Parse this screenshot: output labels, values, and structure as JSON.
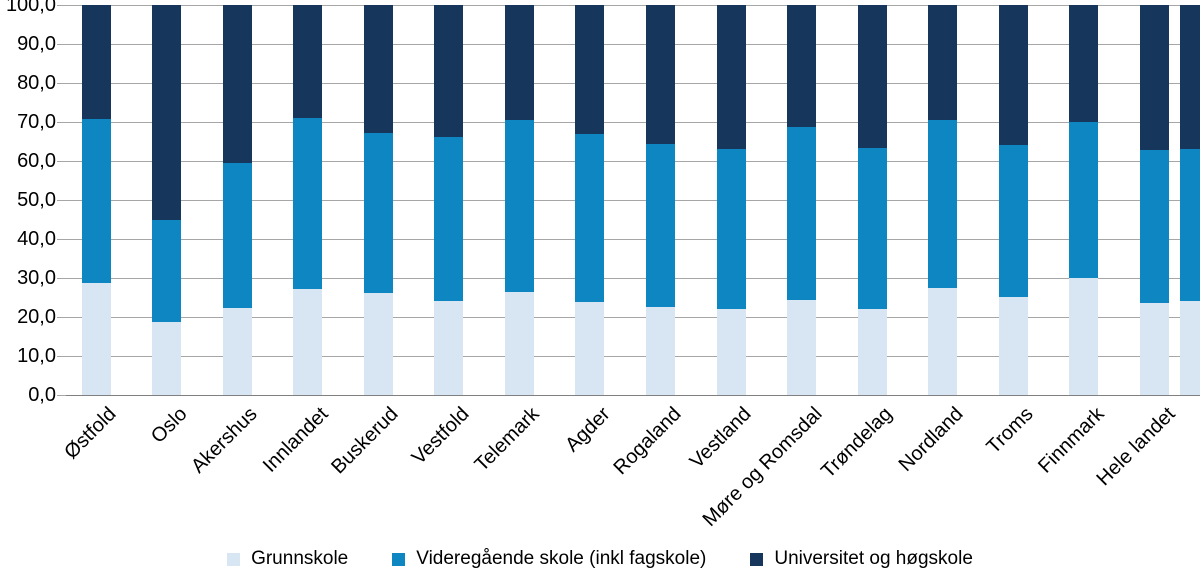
{
  "chart_data": {
    "type": "bar",
    "subtype": "stacked-100-percent-vertical",
    "title": "",
    "xlabel": "",
    "ylabel": "",
    "categories": [
      "Østfold",
      "Oslo",
      "Akershus",
      "Innlandet",
      "Buskerud",
      "Vestfold",
      "Telemark",
      "Agder",
      "Rogaland",
      "Vestland",
      "Møre og Romsdal",
      "Trøndelag",
      "Nordland",
      "Troms",
      "Finnmark",
      "Hele landet"
    ],
    "series": [
      {
        "name": "Grunnskole",
        "color": "#d8e6f3",
        "values": [
          28.7,
          18.6,
          22.3,
          27.2,
          26.2,
          24.1,
          26.3,
          23.8,
          22.5,
          22.1,
          24.3,
          22.1,
          27.4,
          25.1,
          30.0,
          23.5
        ]
      },
      {
        "name": "Videregående skole (inkl fagskole)",
        "color": "#0d86c1",
        "values": [
          42.2,
          26.3,
          37.2,
          43.9,
          41.0,
          42.0,
          44.1,
          43.1,
          41.8,
          41.1,
          44.4,
          41.3,
          43.0,
          39.0,
          40.0,
          39.3
        ]
      },
      {
        "name": "Universitet og høgskole",
        "color": "#17365c",
        "values": [
          29.1,
          55.1,
          40.5,
          28.9,
          32.8,
          33.9,
          29.6,
          33.1,
          35.7,
          36.8,
          31.3,
          36.6,
          29.6,
          35.9,
          30.0,
          37.2
        ]
      }
    ],
    "ylim": [
      0,
      100
    ],
    "ytick_values": [
      0,
      10,
      20,
      30,
      40,
      50,
      60,
      70,
      80,
      90,
      100
    ],
    "ytick_labels": [
      "0,0",
      "10,0",
      "20,0",
      "30,0",
      "40,0",
      "50,0",
      "60,0",
      "70,0",
      "80,0",
      "90,0",
      "100,0"
    ],
    "grid": true,
    "gridline_color": "#a6a6a6",
    "legend_position": "bottom",
    "clipped_partial_bar_at_right_edge": {
      "grunnskole": 24.0,
      "videregaende": 39.0,
      "universitet": 37.0
    }
  }
}
